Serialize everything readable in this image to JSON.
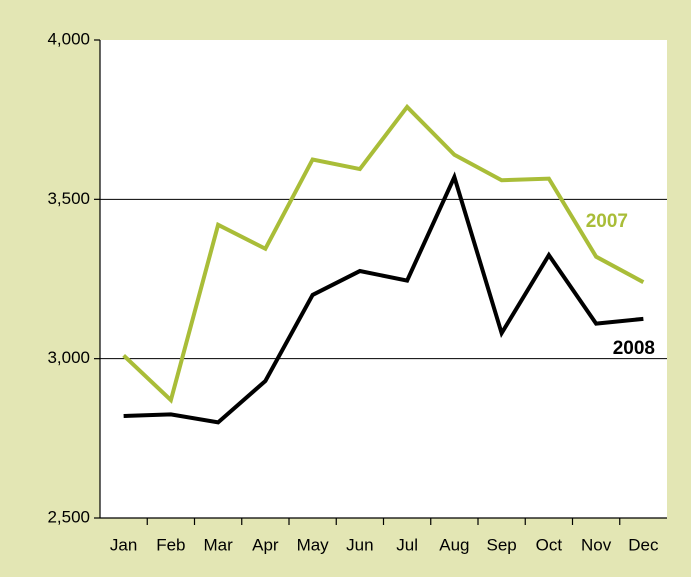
{
  "chart_data": {
    "type": "line",
    "categories": [
      "Jan",
      "Feb",
      "Mar",
      "Apr",
      "May",
      "Jun",
      "Jul",
      "Aug",
      "Sep",
      "Oct",
      "Nov",
      "Dec"
    ],
    "series": [
      {
        "name": "2007",
        "color": "#a9bd38",
        "values": [
          3010,
          2870,
          3420,
          3345,
          3625,
          3595,
          3790,
          3640,
          3560,
          3565,
          3320,
          3240
        ]
      },
      {
        "name": "2008",
        "color": "#000000",
        "values": [
          2820,
          2825,
          2800,
          2930,
          3200,
          3275,
          3245,
          3570,
          3080,
          3325,
          3110,
          3125
        ]
      }
    ],
    "ylim": [
      2500,
      4000
    ],
    "yticks": [
      {
        "value": 2500,
        "label": "2,500"
      },
      {
        "value": 3000,
        "label": "3,000"
      },
      {
        "value": 3500,
        "label": "3,500"
      },
      {
        "value": 4000,
        "label": "4,000"
      }
    ],
    "grid": true
  }
}
